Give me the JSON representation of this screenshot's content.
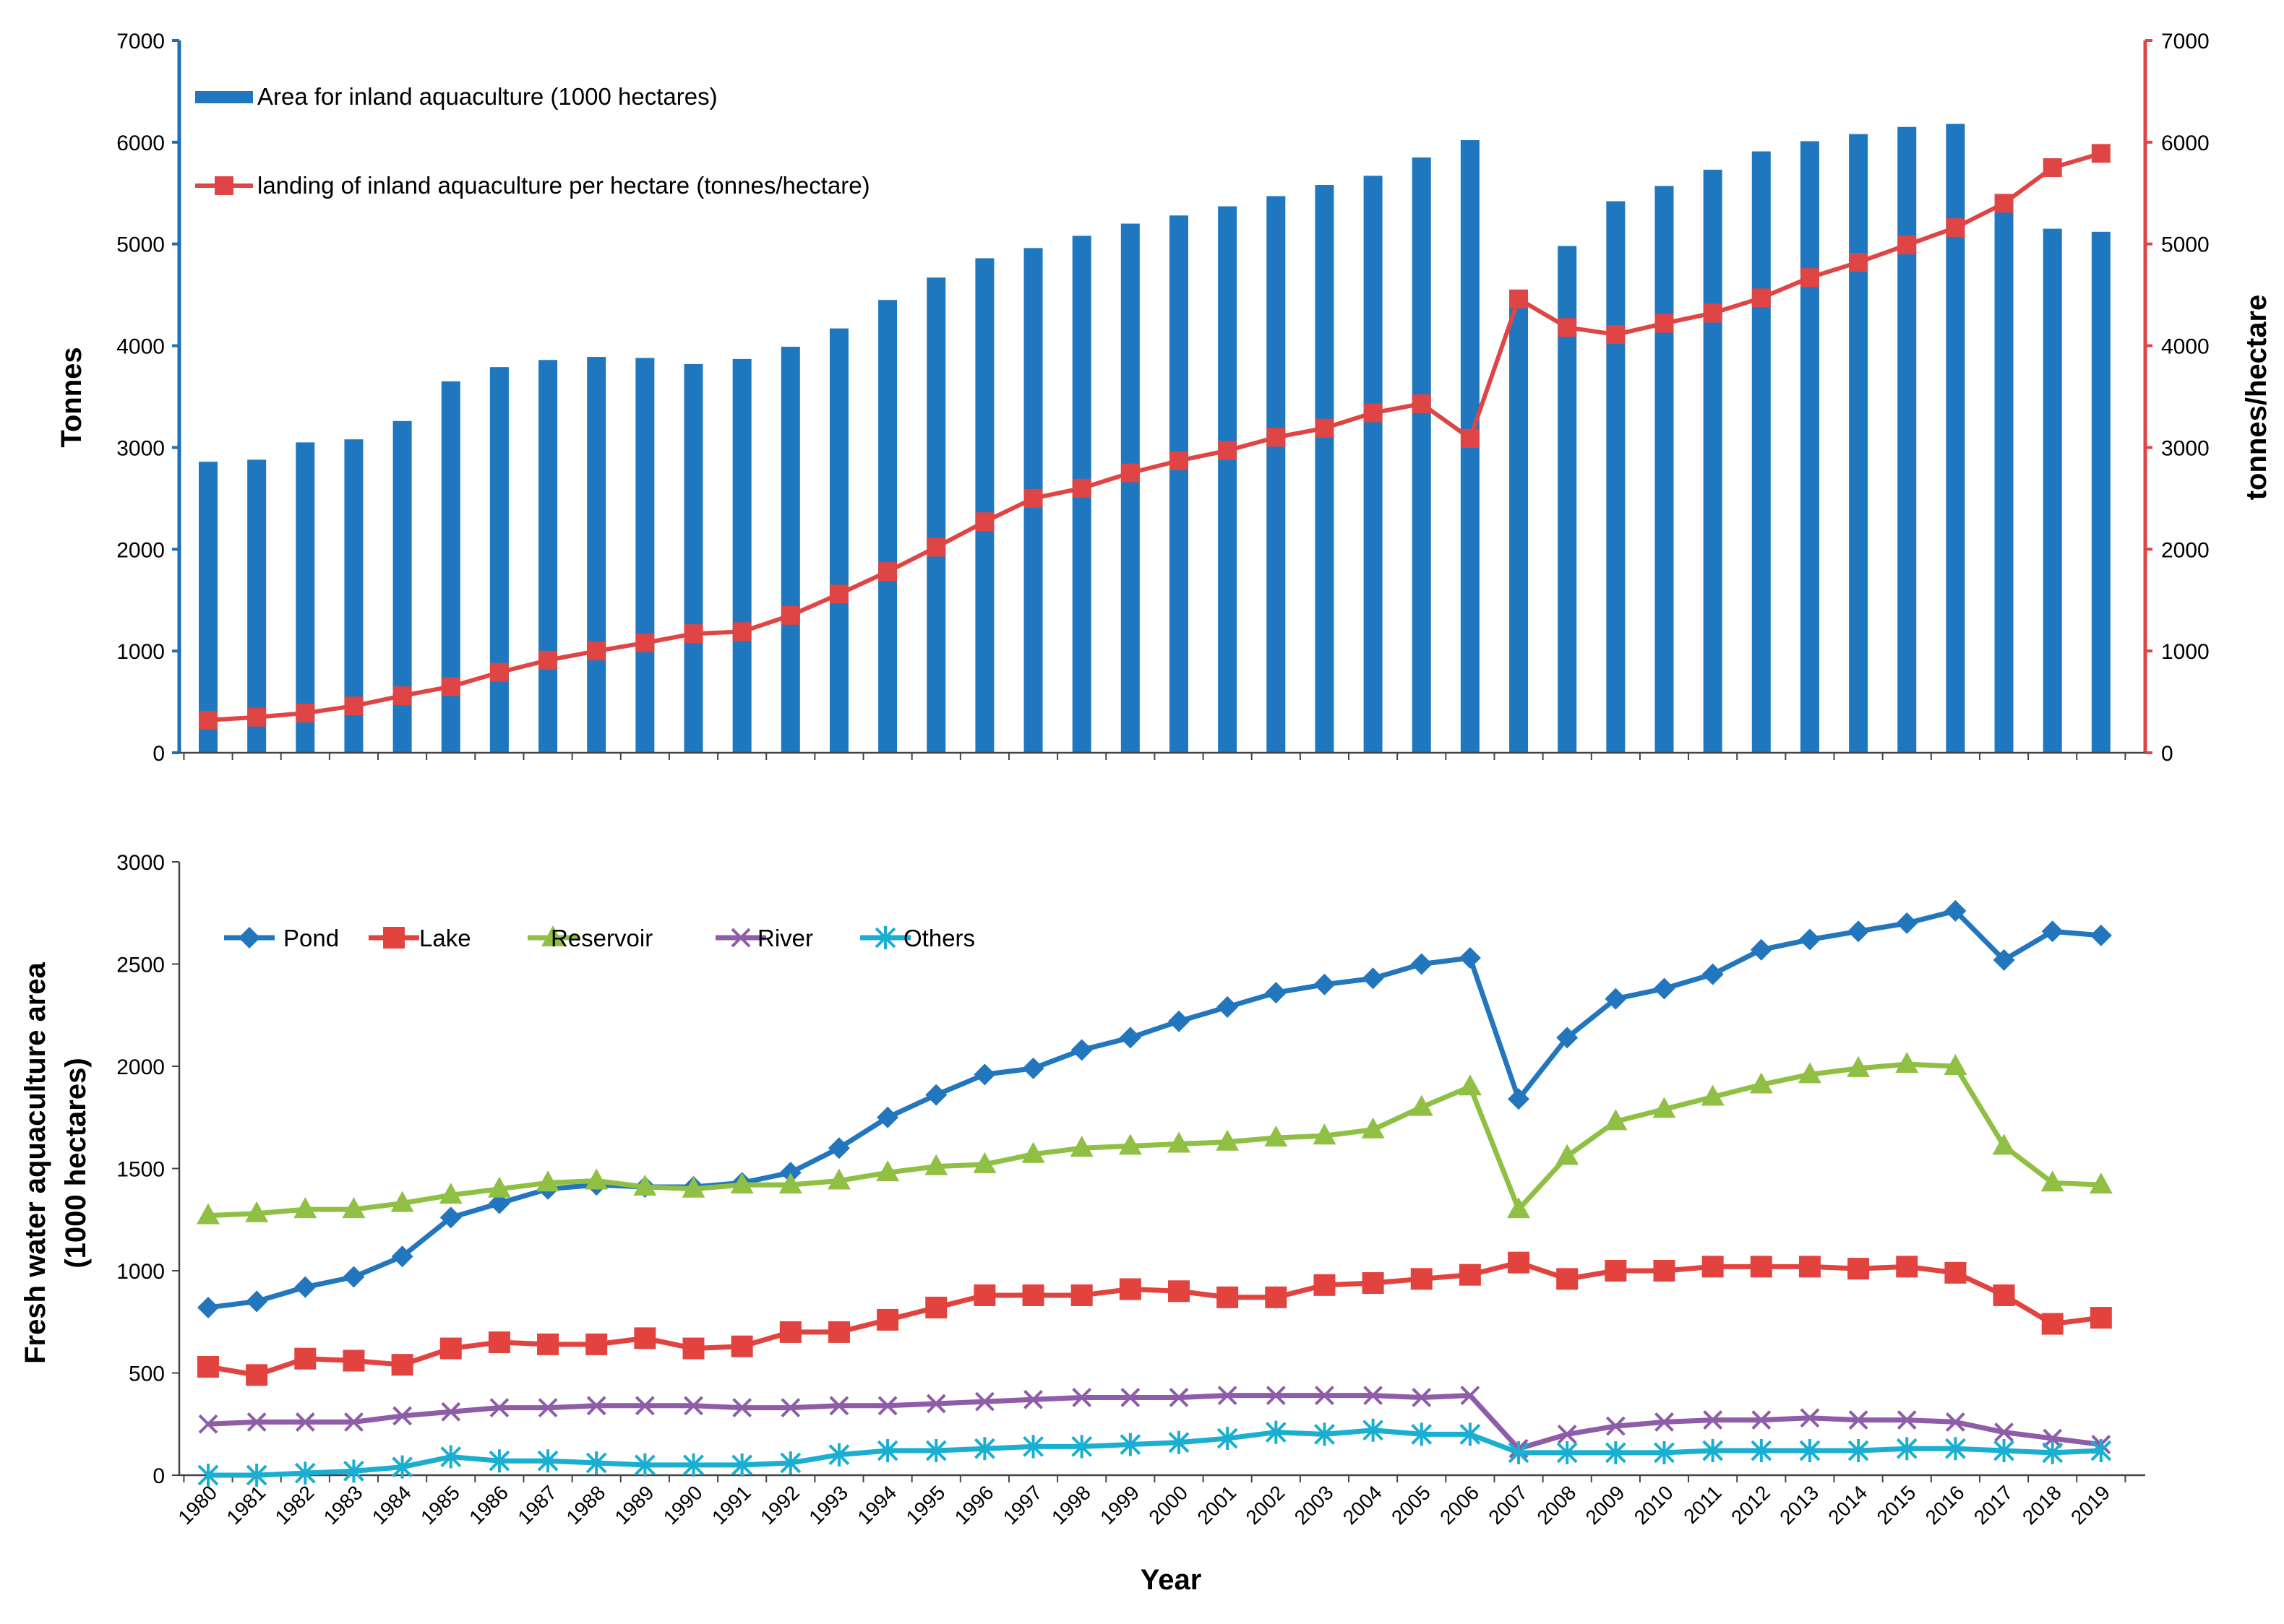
{
  "colors": {
    "bar": "#1f77bf",
    "landing": "#e04545",
    "right_axis": "#e04545",
    "pond": "#2276be",
    "lake": "#e2433f",
    "reservoir": "#8fc044",
    "river": "#8e5ca8",
    "others": "#1aaed0",
    "axis": "#1e6fb5"
  },
  "icons": {
    "pond": "diamond-marker",
    "lake": "square-marker",
    "reservoir": "triangle-marker",
    "river": "x-marker",
    "others": "asterisk-marker"
  },
  "chart_data": [
    {
      "type": "bar+line",
      "title": "",
      "ylabel_left": "Tonnes",
      "ylabel_right": "tonnes/hectare",
      "ylim_left": [
        0,
        7000
      ],
      "ylim_right": [
        0,
        7000
      ],
      "ticks_left": [
        "0",
        "1000",
        "2000",
        "3000",
        "4000",
        "5000",
        "6000",
        "7000"
      ],
      "ticks_right": [
        "0",
        "1000",
        "2000",
        "3000",
        "4000",
        "5000",
        "6000",
        "7000"
      ],
      "legend_position": "top-left",
      "x": [
        "1980",
        "1981",
        "1982",
        "1983",
        "1984",
        "1985",
        "1986",
        "1987",
        "1988",
        "1989",
        "1990",
        "1991",
        "1992",
        "1993",
        "1994",
        "1995",
        "1996",
        "1997",
        "1998",
        "1999",
        "2000",
        "2001",
        "2002",
        "2003",
        "2004",
        "2005",
        "2006",
        "2007",
        "2008",
        "2009",
        "2010",
        "2011",
        "2012",
        "2013",
        "2014",
        "2015",
        "2016",
        "2017",
        "2018",
        "2019"
      ],
      "series": [
        {
          "name": "Area for inland aquaculture (1000 hectares)",
          "kind": "bar",
          "axis": "left",
          "values": [
            2860,
            2880,
            3050,
            3080,
            3260,
            3650,
            3790,
            3860,
            3890,
            3880,
            3820,
            3870,
            3990,
            4170,
            4450,
            4670,
            4860,
            4960,
            5080,
            5200,
            5280,
            5370,
            5470,
            5580,
            5670,
            5850,
            6020,
            4400,
            4980,
            5420,
            5570,
            5730,
            5910,
            6010,
            6080,
            6150,
            6180,
            5390,
            5150,
            5120
          ]
        },
        {
          "name": "landing of inland aquaculture per hectare (tonnes/hectare)",
          "kind": "line",
          "axis": "right",
          "values": [
            320,
            350,
            390,
            460,
            560,
            650,
            790,
            910,
            1000,
            1080,
            1170,
            1190,
            1350,
            1560,
            1780,
            2020,
            2270,
            2500,
            2600,
            2750,
            2870,
            2970,
            3100,
            3190,
            3340,
            3430,
            3090,
            4460,
            4180,
            4110,
            4220,
            4320,
            4470,
            4670,
            4820,
            4990,
            5160,
            5400,
            5750,
            5890
          ]
        }
      ]
    },
    {
      "type": "line",
      "title": "",
      "xlabel": "Year",
      "ylabel": "Fresh water aquaculture area\n(1000 hectares)",
      "ylim": [
        0,
        3000
      ],
      "ticks": [
        "0",
        "500",
        "1000",
        "1500",
        "2000",
        "2500",
        "3000"
      ],
      "legend_position": "top-left",
      "x": [
        "1980",
        "1981",
        "1982",
        "1983",
        "1984",
        "1985",
        "1986",
        "1987",
        "1988",
        "1989",
        "1990",
        "1991",
        "1992",
        "1993",
        "1994",
        "1995",
        "1996",
        "1997",
        "1998",
        "1999",
        "2000",
        "2001",
        "2002",
        "2003",
        "2004",
        "2005",
        "2006",
        "2007",
        "2008",
        "2009",
        "2010",
        "2011",
        "2012",
        "2013",
        "2014",
        "2015",
        "2016",
        "2017",
        "2018",
        "2019"
      ],
      "series": [
        {
          "name": "Pond",
          "values": [
            820,
            850,
            920,
            970,
            1070,
            1260,
            1330,
            1400,
            1420,
            1410,
            1410,
            1430,
            1480,
            1600,
            1750,
            1860,
            1960,
            1990,
            2080,
            2140,
            2220,
            2290,
            2360,
            2400,
            2430,
            2500,
            2530,
            1840,
            2140,
            2330,
            2380,
            2450,
            2570,
            2620,
            2660,
            2700,
            2760,
            2520,
            2660,
            2640
          ]
        },
        {
          "name": "Lake",
          "values": [
            530,
            490,
            570,
            560,
            540,
            620,
            650,
            640,
            640,
            670,
            620,
            630,
            700,
            700,
            760,
            820,
            880,
            880,
            880,
            910,
            900,
            870,
            870,
            930,
            940,
            960,
            980,
            1040,
            960,
            1000,
            1000,
            1020,
            1020,
            1020,
            1010,
            1020,
            990,
            880,
            740,
            770
          ]
        },
        {
          "name": "Reservoir",
          "values": [
            1270,
            1280,
            1300,
            1300,
            1330,
            1370,
            1400,
            1430,
            1440,
            1410,
            1400,
            1420,
            1420,
            1440,
            1480,
            1510,
            1520,
            1570,
            1600,
            1610,
            1620,
            1630,
            1650,
            1660,
            1690,
            1800,
            1900,
            1300,
            1560,
            1730,
            1790,
            1850,
            1910,
            1960,
            1990,
            2010,
            2000,
            1610,
            1430,
            1420
          ]
        },
        {
          "name": "River",
          "values": [
            250,
            260,
            260,
            260,
            290,
            310,
            330,
            330,
            340,
            340,
            340,
            330,
            330,
            340,
            340,
            350,
            360,
            370,
            380,
            380,
            380,
            390,
            390,
            390,
            390,
            380,
            390,
            130,
            200,
            240,
            260,
            270,
            270,
            280,
            270,
            270,
            260,
            210,
            180,
            150
          ]
        },
        {
          "name": "Others",
          "values": [
            0,
            0,
            10,
            20,
            40,
            90,
            70,
            70,
            60,
            50,
            50,
            50,
            60,
            100,
            120,
            120,
            130,
            140,
            140,
            150,
            160,
            180,
            210,
            200,
            220,
            200,
            200,
            110,
            110,
            110,
            110,
            120,
            120,
            120,
            120,
            130,
            130,
            120,
            110,
            120
          ]
        }
      ]
    }
  ]
}
